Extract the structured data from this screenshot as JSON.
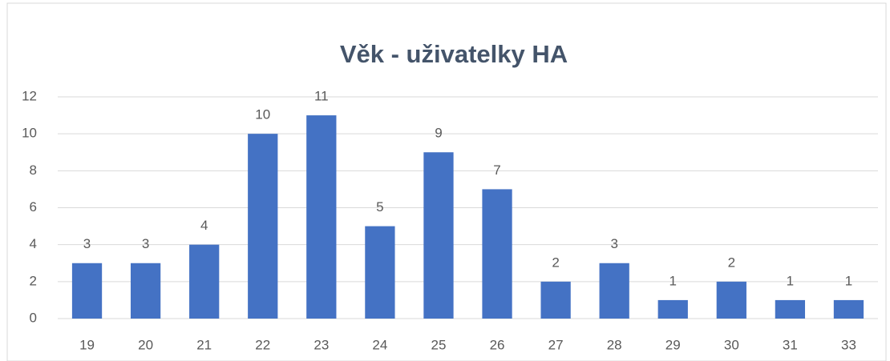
{
  "chart_data": {
    "type": "bar",
    "title": "Věk - uživatelky HA",
    "categories": [
      "19",
      "20",
      "21",
      "22",
      "23",
      "24",
      "25",
      "26",
      "27",
      "28",
      "29",
      "30",
      "31",
      "33"
    ],
    "values": [
      3,
      3,
      4,
      10,
      11,
      5,
      9,
      7,
      2,
      3,
      1,
      2,
      1,
      1
    ],
    "color": "#4472c4",
    "ylim": [
      0,
      12
    ],
    "yticks": [
      0,
      2,
      4,
      6,
      8,
      10,
      12
    ],
    "grid": true
  }
}
